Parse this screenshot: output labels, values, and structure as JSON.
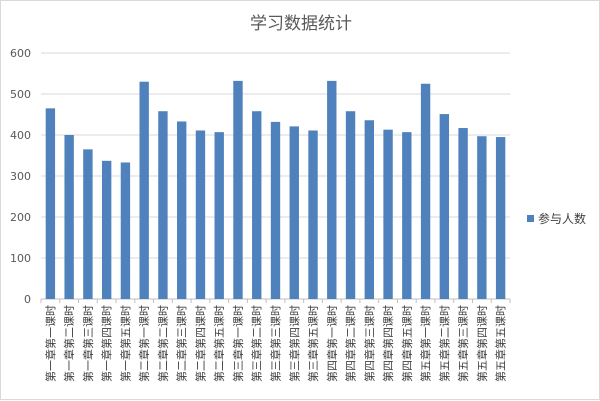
{
  "chart_data": {
    "type": "bar",
    "title": "学习数据统计",
    "xlabel": "",
    "ylabel": "",
    "ylim": [
      0,
      600
    ],
    "yticks": [
      0,
      100,
      200,
      300,
      400,
      500,
      600
    ],
    "grid": true,
    "legend_position": "right",
    "bar_color": "#4f81bd",
    "categories": [
      "第一章第一课时",
      "第一章第二课时",
      "第一章第三课时",
      "第一章第四课时",
      "第一章第五课时",
      "第二章第一课时",
      "第二章第二课时",
      "第二章第三课时",
      "第二章第四课时",
      "第二章第五课时",
      "第三章第一课时",
      "第三章第二课时",
      "第三章第三课时",
      "第三章第四课时",
      "第三章第五课时",
      "第四章第一课时",
      "第四章第二课时",
      "第四章第三课时",
      "第四章第四课时",
      "第四章第五课时",
      "第五章第一课时",
      "第五章第二课时",
      "第五章第三课时",
      "第五章第四课时",
      "第五章第五课时"
    ],
    "series": [
      {
        "name": "参与人数",
        "values": [
          465,
          400,
          365,
          337,
          333,
          530,
          458,
          433,
          411,
          407,
          532,
          458,
          432,
          421,
          411,
          532,
          458,
          436,
          413,
          407,
          525,
          451,
          417,
          397,
          395
        ]
      }
    ]
  }
}
